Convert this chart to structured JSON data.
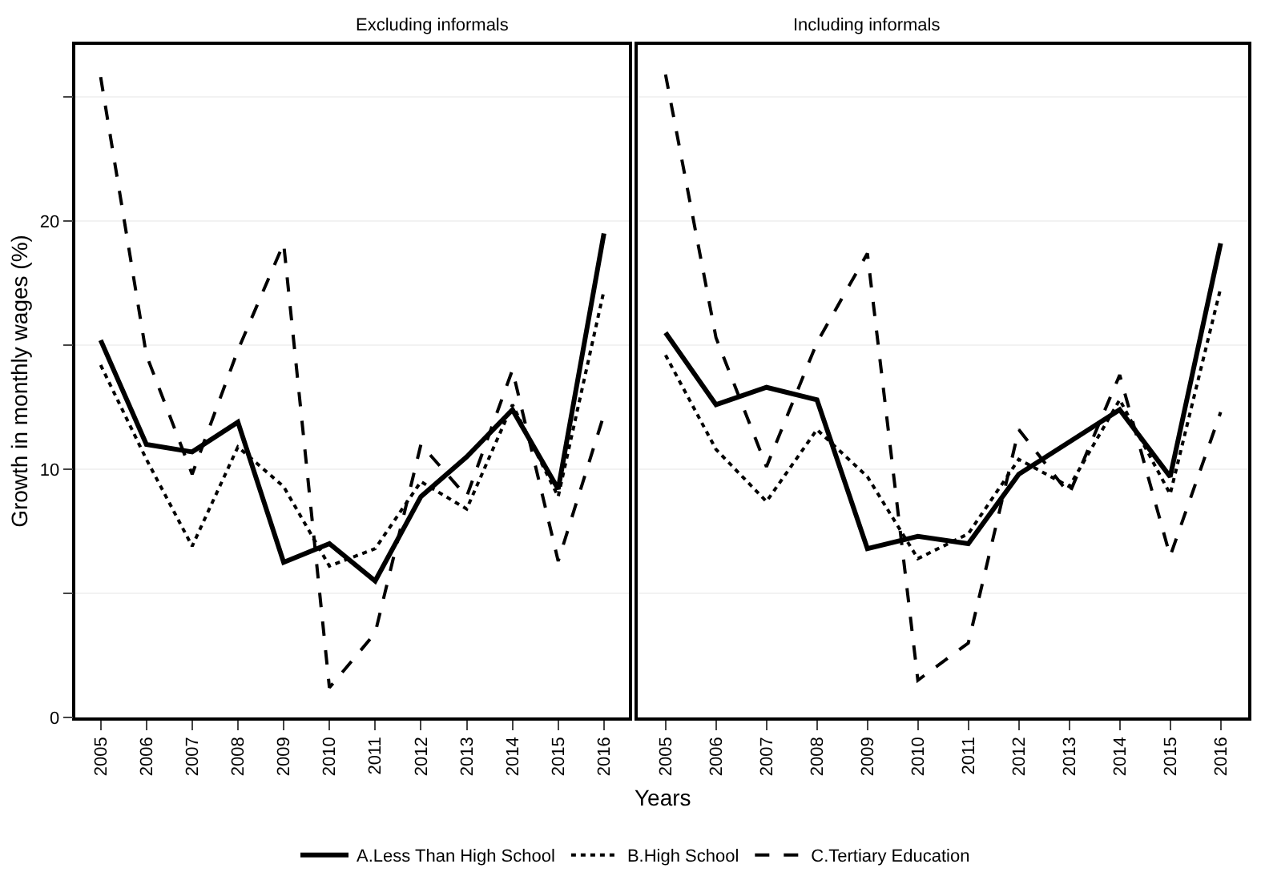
{
  "chart_data": [
    {
      "type": "line",
      "title": "Excluding informals",
      "xlabel": "Years",
      "ylabel": "Growth in monthly wages (%)",
      "legend": "bottom",
      "grid": "y",
      "x": [
        2005,
        2006,
        2007,
        2008,
        2009,
        2010,
        2011,
        2012,
        2013,
        2014,
        2015,
        2016
      ],
      "xlim": [
        2004.45,
        2016.55
      ],
      "xticks": [
        2005,
        2006,
        2007,
        2008,
        2009,
        2010,
        2011,
        2012,
        2013,
        2014,
        2015,
        2016
      ],
      "ylim": [
        0,
        27.1
      ],
      "yticks": [
        0,
        {
          "value": 5,
          "label": null
        },
        10,
        {
          "value": 15,
          "label": null
        },
        20,
        {
          "value": 25,
          "label": null
        }
      ],
      "series": [
        {
          "name": "A.Less Than High School",
          "color": "#000000",
          "line_style": "solid",
          "values": [
            15.2,
            11.0,
            10.7,
            11.9,
            6.25,
            7.0,
            5.5,
            8.9,
            10.5,
            12.4,
            9.2,
            19.5
          ]
        },
        {
          "name": "B.High School",
          "color": "#000000",
          "line_style": "dotted",
          "values": [
            14.2,
            10.4,
            6.9,
            10.9,
            9.3,
            6.1,
            6.8,
            9.5,
            8.4,
            12.6,
            8.9,
            17.2
          ]
        },
        {
          "name": "C.Tertiary Education",
          "color": "#000000",
          "line_style": "dashed",
          "values": [
            25.8,
            14.6,
            9.8,
            14.8,
            19.1,
            1.2,
            3.4,
            11.0,
            8.9,
            14.0,
            6.3,
            12.2
          ]
        }
      ]
    },
    {
      "type": "line",
      "title": "Including informals",
      "tick_labels": "x",
      "grid": "y",
      "x": [
        2005,
        2006,
        2007,
        2008,
        2009,
        2010,
        2011,
        2012,
        2013,
        2014,
        2015,
        2016
      ],
      "xlim": [
        2004.45,
        2016.55
      ],
      "xticks": [
        2005,
        2006,
        2007,
        2008,
        2009,
        2010,
        2011,
        2012,
        2013,
        2014,
        2015,
        2016
      ],
      "ylim": [
        0,
        27.1
      ],
      "yticks": [
        0,
        {
          "value": 5,
          "label": null
        },
        10,
        {
          "value": 15,
          "label": null
        },
        20,
        {
          "value": 25,
          "label": null
        }
      ],
      "series": [
        {
          "name": "A.Less Than High School",
          "color": "#000000",
          "line_style": "solid",
          "values": [
            15.5,
            12.6,
            13.3,
            12.8,
            6.8,
            7.3,
            7.0,
            9.8,
            11.1,
            12.4,
            9.7,
            19.1
          ]
        },
        {
          "name": "B.High School",
          "color": "#000000",
          "line_style": "dotted",
          "values": [
            14.6,
            10.8,
            8.7,
            11.6,
            9.7,
            6.4,
            7.4,
            10.4,
            9.3,
            12.8,
            9.0,
            17.3
          ]
        },
        {
          "name": "C.Tertiary Education",
          "color": "#000000",
          "line_style": "dashed",
          "values": [
            25.9,
            15.3,
            10.1,
            15.1,
            18.7,
            1.5,
            3.0,
            11.6,
            9.0,
            13.8,
            6.5,
            12.3
          ]
        }
      ]
    }
  ]
}
